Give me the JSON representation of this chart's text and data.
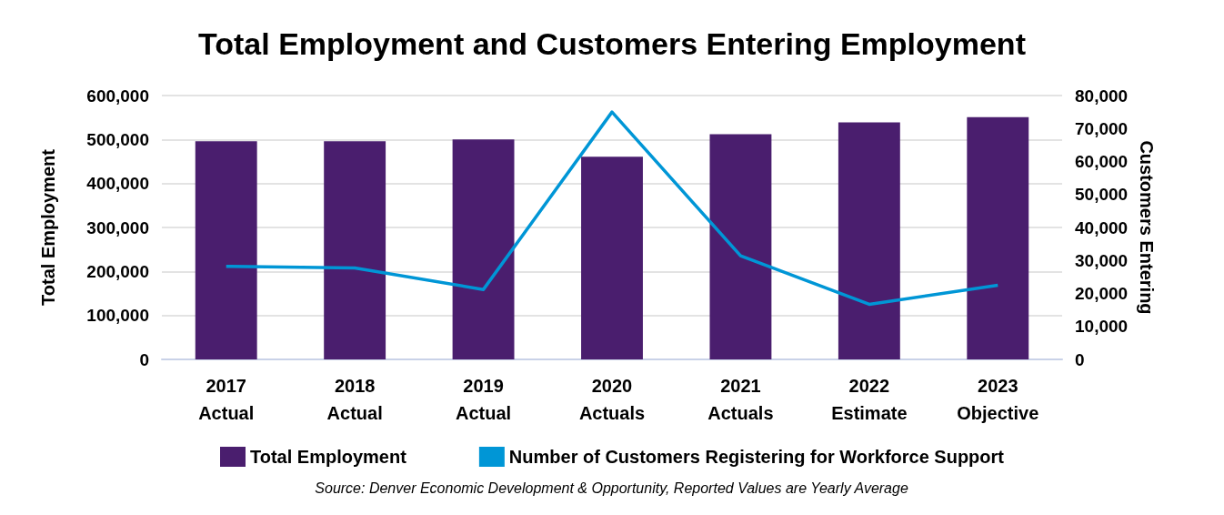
{
  "chart_data": {
    "type": "bar",
    "title": "Total Employment and Customers Entering Employment",
    "ylabel": "Total Employment",
    "y2label": "Customers Entering",
    "categories": [
      "2017\nActual",
      "2018\nActual",
      "2019\nActual",
      "2020\nActuals",
      "2021\nActuals",
      "2022\nEstimate",
      "2023\nObjective"
    ],
    "series": [
      {
        "name": "Total Employment",
        "color": "#4a1e6e",
        "values": [
          496000,
          496000,
          500000,
          461000,
          512000,
          539000,
          551000
        ]
      },
      {
        "name": "Number of Customers Registering for Workforce Support",
        "type": "line",
        "axis": "y2",
        "color": "#0096d6",
        "values": [
          28200,
          27700,
          21200,
          75000,
          31400,
          16700,
          22500
        ]
      }
    ],
    "ylim": [
      0,
      600000
    ],
    "yticks": [
      0,
      {
        "value": 100000,
        "label": "100,000"
      },
      {
        "value": 200000,
        "label": "200,000"
      },
      {
        "value": 300000,
        "label": "300,000"
      },
      {
        "value": 400000,
        "label": "400,000"
      },
      {
        "value": 500000,
        "label": "500,000"
      },
      {
        "value": 600000,
        "label": "600,000"
      }
    ],
    "y2lim": [
      0,
      80000
    ],
    "y2ticks": [
      0,
      {
        "value": 10000,
        "label": "10,000"
      },
      {
        "value": 20000,
        "label": "20,000"
      },
      {
        "value": 30000,
        "label": "30,000"
      },
      {
        "value": 40000,
        "label": "40,000"
      },
      {
        "value": 50000,
        "label": "50,000"
      },
      {
        "value": 60000,
        "label": "60,000"
      },
      {
        "value": 70000,
        "label": "70,000"
      },
      {
        "value": 80000,
        "label": "80,000"
      }
    ],
    "grid": "y",
    "legend": "bottom",
    "marker": "none",
    "line_style": "solid",
    "annotations": [
      "Source: Denver Economic Development & Opportunity, Reported Values are Yearly Average"
    ]
  }
}
